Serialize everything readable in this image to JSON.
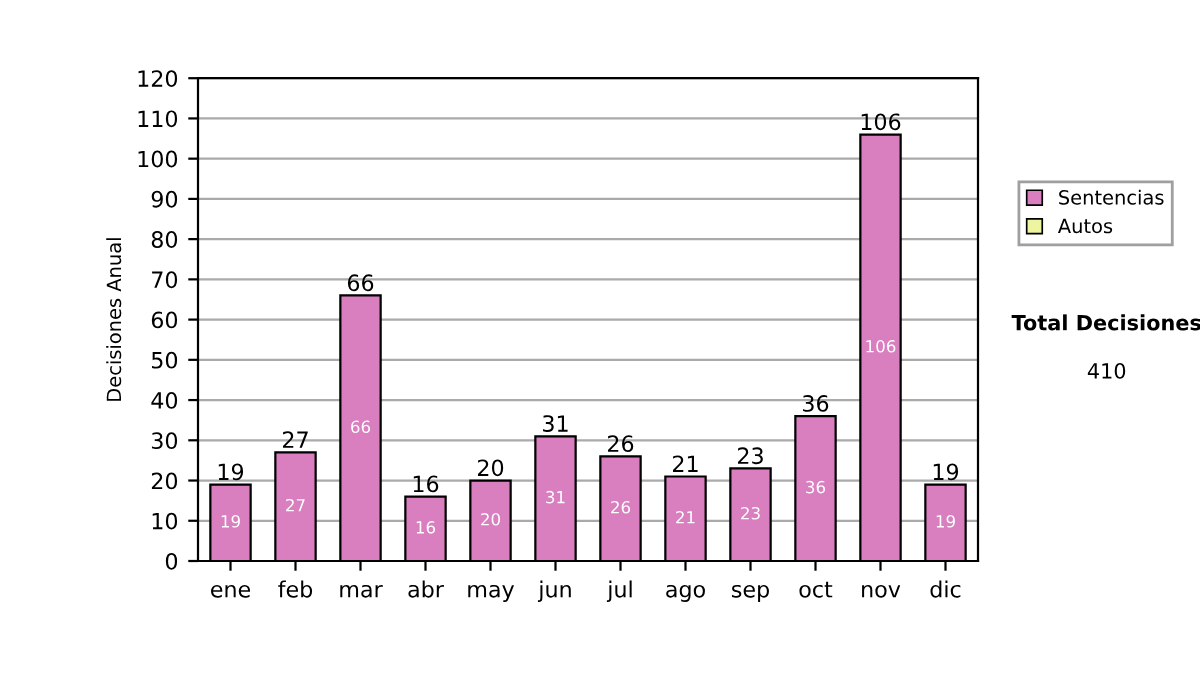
{
  "chart_data": {
    "type": "bar",
    "ylabel": "Decisiones Anual",
    "categories": [
      "ene",
      "feb",
      "mar",
      "abr",
      "may",
      "jun",
      "jul",
      "ago",
      "sep",
      "oct",
      "nov",
      "dic"
    ],
    "series": [
      {
        "name": "Sentencias",
        "color": "#d97fc0",
        "values": [
          19,
          27,
          66,
          16,
          20,
          31,
          26,
          21,
          23,
          36,
          106,
          19
        ],
        "value_labels": [
          "19",
          "27",
          "66",
          "16",
          "20",
          "31",
          "26",
          "21",
          "23",
          "36",
          "106",
          "19"
        ]
      },
      {
        "name": "Autos",
        "color": "#eef5a0",
        "values": [
          null,
          null,
          null,
          null,
          null,
          null,
          null,
          null,
          null,
          null,
          null,
          null
        ]
      }
    ],
    "stacked": true,
    "ylim": [
      0,
      120
    ],
    "yticks": [
      0,
      10,
      20,
      30,
      40,
      50,
      60,
      70,
      80,
      90,
      100,
      110,
      120
    ],
    "grid": "y",
    "legend": "right",
    "totals": [
      "19",
      "27",
      "66",
      "16",
      "20",
      "31",
      "26",
      "21",
      "23",
      "36",
      "106",
      "19"
    ],
    "annotations": [
      "Total Decisiones",
      "410"
    ]
  }
}
